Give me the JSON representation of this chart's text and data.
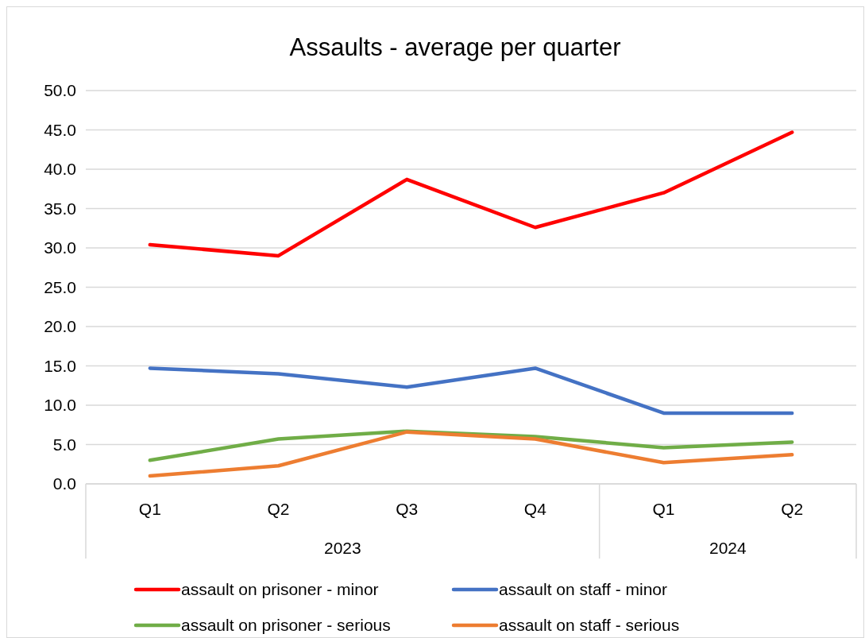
{
  "chart_data": {
    "type": "line",
    "title": "Assaults - average per quarter",
    "categories": [
      "Q1",
      "Q2",
      "Q3",
      "Q4",
      "Q1",
      "Q2"
    ],
    "series": [
      {
        "name": "assault on prisoner - minor",
        "color": "#ff0000",
        "values": [
          30.4,
          29.0,
          38.7,
          32.6,
          37.0,
          44.7
        ]
      },
      {
        "name": "assault on staff - minor",
        "color": "#4472c4",
        "values": [
          14.7,
          14.0,
          12.3,
          14.7,
          9.0,
          9.0
        ]
      },
      {
        "name": "assault on prisoner - serious",
        "color": "#70ad47",
        "values": [
          3.0,
          5.7,
          6.7,
          6.0,
          4.6,
          5.3
        ]
      },
      {
        "name": "assault on staff - serious",
        "color": "#ed7d31",
        "values": [
          1.0,
          2.3,
          6.6,
          5.7,
          2.7,
          3.7
        ]
      }
    ],
    "annotations": [
      "2023",
      "2024"
    ],
    "ylim": [
      0,
      50
    ],
    "yticks": [
      {
        "value": 0,
        "label": "0.0"
      },
      {
        "value": 5,
        "label": "5.0"
      },
      {
        "value": 10,
        "label": "10.0"
      },
      {
        "value": 15,
        "label": "15.0"
      },
      {
        "value": 20,
        "label": "20.0"
      },
      {
        "value": 25,
        "label": "25.0"
      },
      {
        "value": 30,
        "label": "30.0"
      },
      {
        "value": 35,
        "label": "35.0"
      },
      {
        "value": 40,
        "label": "40.0"
      },
      {
        "value": 45,
        "label": "45.0"
      },
      {
        "value": 50,
        "label": "50.0"
      }
    ],
    "grid": "y",
    "legend": "bottom",
    "marker": "none",
    "line_style": "solid"
  }
}
